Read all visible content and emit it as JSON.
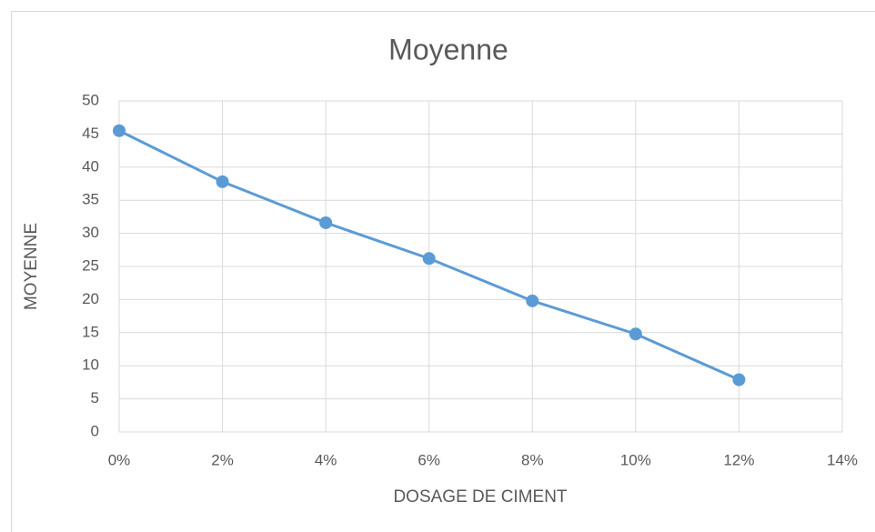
{
  "chart_data": {
    "type": "line",
    "title": "Moyenne",
    "x_label": "DOSAGE DE CIMENT",
    "y_label": "MOYENNE",
    "x": [
      0,
      2,
      4,
      6,
      8,
      10,
      12
    ],
    "series": [
      {
        "color": "#5b9bd5",
        "values": [
          45.5,
          37.8,
          31.6,
          26.2,
          19.8,
          14.8,
          7.9
        ]
      }
    ],
    "xlim": [
      0,
      14
    ],
    "xticks": [
      {
        "value": 0,
        "label": "0%"
      },
      {
        "value": 2,
        "label": "2%"
      },
      {
        "value": 4,
        "label": "4%"
      },
      {
        "value": 6,
        "label": "6%"
      },
      {
        "value": 8,
        "label": "8%"
      },
      {
        "value": 10,
        "label": "10%"
      },
      {
        "value": 12,
        "label": "12%"
      },
      {
        "value": 14,
        "label": "14%"
      }
    ],
    "ylim": [
      0,
      50
    ],
    "yticks": [
      0,
      5,
      10,
      15,
      20,
      25,
      30,
      35,
      40,
      45,
      50
    ],
    "grid": true
  }
}
